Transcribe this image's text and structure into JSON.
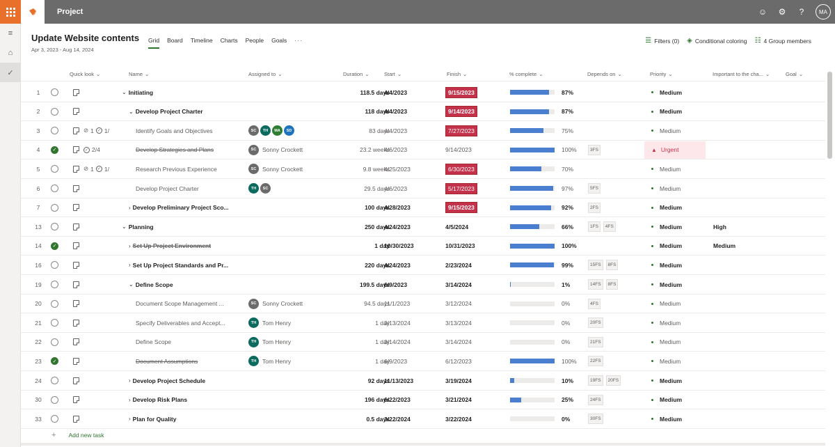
{
  "app": {
    "title": "Project",
    "avatar_initials": "MA"
  },
  "project": {
    "title": "Update Website contents",
    "dates": "Apr 3, 2023 - Aug 14, 2024"
  },
  "tabs": [
    "Grid",
    "Board",
    "Timeline",
    "Charts",
    "People",
    "Goals"
  ],
  "header_actions": {
    "filters": "Filters (0)",
    "conditional": "Conditional coloring",
    "members": "4 Group members"
  },
  "columns": {
    "quick_look": "Quick look",
    "name": "Name",
    "assigned": "Assigned to",
    "duration": "Duration",
    "start": "Start",
    "finish": "Finish",
    "pct": "% complete",
    "depends": "Depends on",
    "priority": "Priority",
    "important": "Important to the cha...",
    "goal": "Goal"
  },
  "colors": {
    "accent": "#31752f",
    "late": "#c4314b",
    "bar": "#4a7fd0"
  },
  "rows": [
    {
      "num": "1",
      "name": "Initiating",
      "level": 0,
      "summary": true,
      "expanded": true,
      "extras": "",
      "assignees": [],
      "assignee_name": "",
      "duration": "118.5 days",
      "start": "4/4/2023",
      "finish": "9/15/2023",
      "late": true,
      "pct": 87,
      "pct_label": "87%",
      "depends": [],
      "priority": "Medium",
      "important": "",
      "done": false,
      "strike": false
    },
    {
      "num": "2",
      "name": "Develop Project Charter",
      "level": 1,
      "summary": true,
      "expanded": true,
      "extras": "",
      "assignees": [],
      "assignee_name": "",
      "duration": "118 days",
      "start": "4/4/2023",
      "finish": "9/14/2023",
      "late": true,
      "pct": 87,
      "pct_label": "87%",
      "depends": [],
      "priority": "Medium",
      "important": "",
      "done": false,
      "strike": false
    },
    {
      "num": "3",
      "name": "Identify Goals and Objectives",
      "level": 2,
      "summary": false,
      "extras": "1 ✓ 1/",
      "attach": "1",
      "check": "1/",
      "assignees": [
        "SC",
        "TH",
        "MA",
        "SD"
      ],
      "assignee_name": "",
      "duration": "83 days",
      "start": "4/4/2023",
      "finish": "7/27/2023",
      "late": true,
      "pct": 75,
      "pct_label": "75%",
      "depends": [],
      "priority": "Medium",
      "important": "",
      "done": false,
      "strike": false
    },
    {
      "num": "4",
      "name": "Develop Strategies and Plans",
      "level": 2,
      "summary": false,
      "check": "2/4",
      "assignees": [
        "SC"
      ],
      "assignee_name": "Sonny Crockett",
      "duration": "23.2 weeks",
      "start": "4/6/2023",
      "finish": "9/14/2023",
      "late": false,
      "pct": 100,
      "pct_label": "100%",
      "depends": [
        "3FS"
      ],
      "priority": "Urgent",
      "important": "",
      "done": true,
      "strike": true
    },
    {
      "num": "5",
      "name": "Research Previous Experience",
      "level": 2,
      "summary": false,
      "attach": "1",
      "check": "1/",
      "assignees": [
        "SC"
      ],
      "assignee_name": "Sonny Crockett",
      "duration": "9.8 weeks",
      "start": "4/25/2023",
      "finish": "6/30/2023",
      "late": true,
      "pct": 70,
      "pct_label": "70%",
      "depends": [],
      "priority": "Medium",
      "important": "",
      "done": false,
      "strike": false
    },
    {
      "num": "6",
      "name": "Develop Project Charter",
      "level": 2,
      "summary": false,
      "assignees": [
        "TH",
        "SC"
      ],
      "assignee_name": "",
      "duration": "29.5 days",
      "start": "4/6/2023",
      "finish": "5/17/2023",
      "late": true,
      "pct": 97,
      "pct_label": "97%",
      "depends": [
        "5FS"
      ],
      "priority": "Medium",
      "important": "",
      "done": false,
      "strike": false
    },
    {
      "num": "7",
      "name": "Develop Preliminary Project Sco...",
      "level": 1,
      "summary": true,
      "expanded": false,
      "assignees": [],
      "assignee_name": "",
      "duration": "100 days",
      "start": "4/28/2023",
      "finish": "9/15/2023",
      "late": true,
      "pct": 92,
      "pct_label": "92%",
      "depends": [
        "2FS"
      ],
      "priority": "Medium",
      "important": "",
      "done": false,
      "strike": false
    },
    {
      "num": "13",
      "name": "Planning",
      "level": 0,
      "summary": true,
      "expanded": true,
      "assignees": [],
      "assignee_name": "",
      "duration": "250 days",
      "start": "4/24/2023",
      "finish": "4/5/2024",
      "late": false,
      "pct": 66,
      "pct_label": "66%",
      "depends": [
        "1FS",
        "4FS"
      ],
      "priority": "Medium",
      "important": "High",
      "done": false,
      "strike": false
    },
    {
      "num": "14",
      "name": "Set Up Project Environment",
      "level": 1,
      "summary": true,
      "expanded": false,
      "assignees": [],
      "assignee_name": "",
      "duration": "1 day",
      "start": "10/30/2023",
      "finish": "10/31/2023",
      "late": false,
      "pct": 100,
      "pct_label": "100%",
      "depends": [],
      "priority": "Medium",
      "important": "Medium",
      "done": true,
      "strike": true
    },
    {
      "num": "16",
      "name": "Set Up Project Standards and Pr...",
      "level": 1,
      "summary": true,
      "expanded": false,
      "assignees": [],
      "assignee_name": "",
      "duration": "220 days",
      "start": "4/24/2023",
      "finish": "2/23/2024",
      "late": false,
      "pct": 99,
      "pct_label": "99%",
      "depends": [
        "15FS",
        "8FS"
      ],
      "priority": "Medium",
      "important": "",
      "done": false,
      "strike": false
    },
    {
      "num": "19",
      "name": "Define Scope",
      "level": 1,
      "summary": true,
      "expanded": true,
      "assignees": [],
      "assignee_name": "",
      "duration": "199.5 days",
      "start": "6/9/2023",
      "finish": "3/14/2024",
      "late": false,
      "pct": 1,
      "pct_label": "1%",
      "depends": [
        "14FS",
        "8FS"
      ],
      "priority": "Medium",
      "important": "",
      "done": false,
      "strike": false
    },
    {
      "num": "20",
      "name": "Document Scope Management ...",
      "level": 2,
      "summary": false,
      "assignees": [
        "SC"
      ],
      "assignee_name": "Sonny Crockett",
      "duration": "94.5 days",
      "start": "11/1/2023",
      "finish": "3/12/2024",
      "late": false,
      "pct": 0,
      "pct_label": "0%",
      "depends": [
        "4FS"
      ],
      "priority": "Medium",
      "important": "",
      "done": false,
      "strike": false
    },
    {
      "num": "21",
      "name": "Specify Deliverables and Accept...",
      "level": 2,
      "summary": false,
      "assignees": [
        "TH"
      ],
      "assignee_name": "Tom Henry",
      "duration": "1 day",
      "start": "3/13/2024",
      "finish": "3/13/2024",
      "late": false,
      "pct": 0,
      "pct_label": "0%",
      "depends": [
        "20FS"
      ],
      "priority": "Medium",
      "important": "",
      "done": false,
      "strike": false
    },
    {
      "num": "22",
      "name": "Define Scope",
      "level": 2,
      "summary": false,
      "assignees": [
        "TH"
      ],
      "assignee_name": "Tom Henry",
      "duration": "1 day",
      "start": "3/14/2024",
      "finish": "3/14/2024",
      "late": false,
      "pct": 0,
      "pct_label": "0%",
      "depends": [
        "21FS"
      ],
      "priority": "Medium",
      "important": "",
      "done": false,
      "strike": false
    },
    {
      "num": "23",
      "name": "Document Assumptions",
      "level": 2,
      "summary": false,
      "assignees": [
        "TH"
      ],
      "assignee_name": "Tom Henry",
      "duration": "1 day",
      "start": "6/9/2023",
      "finish": "6/12/2023",
      "late": false,
      "pct": 100,
      "pct_label": "100%",
      "depends": [
        "22FS"
      ],
      "priority": "Medium",
      "important": "",
      "done": true,
      "strike": true
    },
    {
      "num": "24",
      "name": "Develop Project Schedule",
      "level": 1,
      "summary": true,
      "expanded": false,
      "assignees": [],
      "assignee_name": "",
      "duration": "92 days",
      "start": "11/13/2023",
      "finish": "3/19/2024",
      "late": false,
      "pct": 10,
      "pct_label": "10%",
      "depends": [
        "19FS",
        "20FS"
      ],
      "priority": "Medium",
      "important": "",
      "done": false,
      "strike": false
    },
    {
      "num": "30",
      "name": "Develop Risk Plans",
      "level": 1,
      "summary": true,
      "expanded": false,
      "assignees": [],
      "assignee_name": "",
      "duration": "196 days",
      "start": "6/22/2023",
      "finish": "3/21/2024",
      "late": false,
      "pct": 25,
      "pct_label": "25%",
      "depends": [
        "24FS"
      ],
      "priority": "Medium",
      "important": "",
      "done": false,
      "strike": false
    },
    {
      "num": "33",
      "name": "Plan for Quality",
      "level": 1,
      "summary": true,
      "expanded": false,
      "assignees": [],
      "assignee_name": "",
      "duration": "0.5 days",
      "start": "3/22/2024",
      "finish": "3/22/2024",
      "late": false,
      "pct": 0,
      "pct_label": "0%",
      "depends": [
        "30FS"
      ],
      "priority": "Medium",
      "important": "",
      "done": false,
      "strike": false
    }
  ],
  "avatar_colors": {
    "SC": "#6b6b6b",
    "TH": "#0b6a5e",
    "MA": "#2e7d32",
    "SD": "#1e73be"
  },
  "add_task": "Add new task"
}
